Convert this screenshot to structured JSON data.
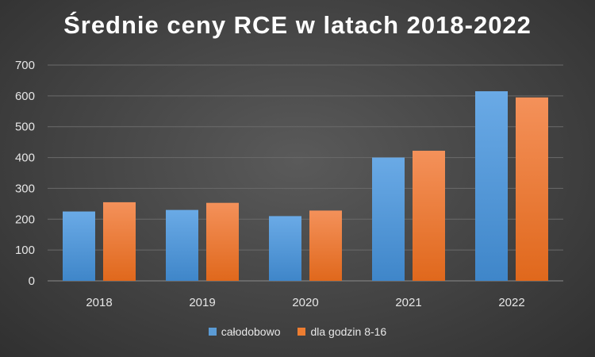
{
  "chart_data": {
    "type": "bar",
    "title": "Średnie ceny RCE w latach 2018-2022",
    "categories": [
      "2018",
      "2019",
      "2020",
      "2021",
      "2022"
    ],
    "series": [
      {
        "name": "całodobowo",
        "values": [
          225,
          230,
          210,
          400,
          615
        ],
        "color": "#5b9bd5"
      },
      {
        "name": "dla godzin 8-16",
        "values": [
          255,
          253,
          228,
          422,
          595
        ],
        "color": "#ed7d31"
      }
    ],
    "ylim": [
      0,
      700
    ],
    "yticks": [
      0,
      100,
      200,
      300,
      400,
      500,
      600,
      700
    ],
    "xlabel": "",
    "ylabel": "",
    "grid": true,
    "legend_position": "bottom"
  }
}
